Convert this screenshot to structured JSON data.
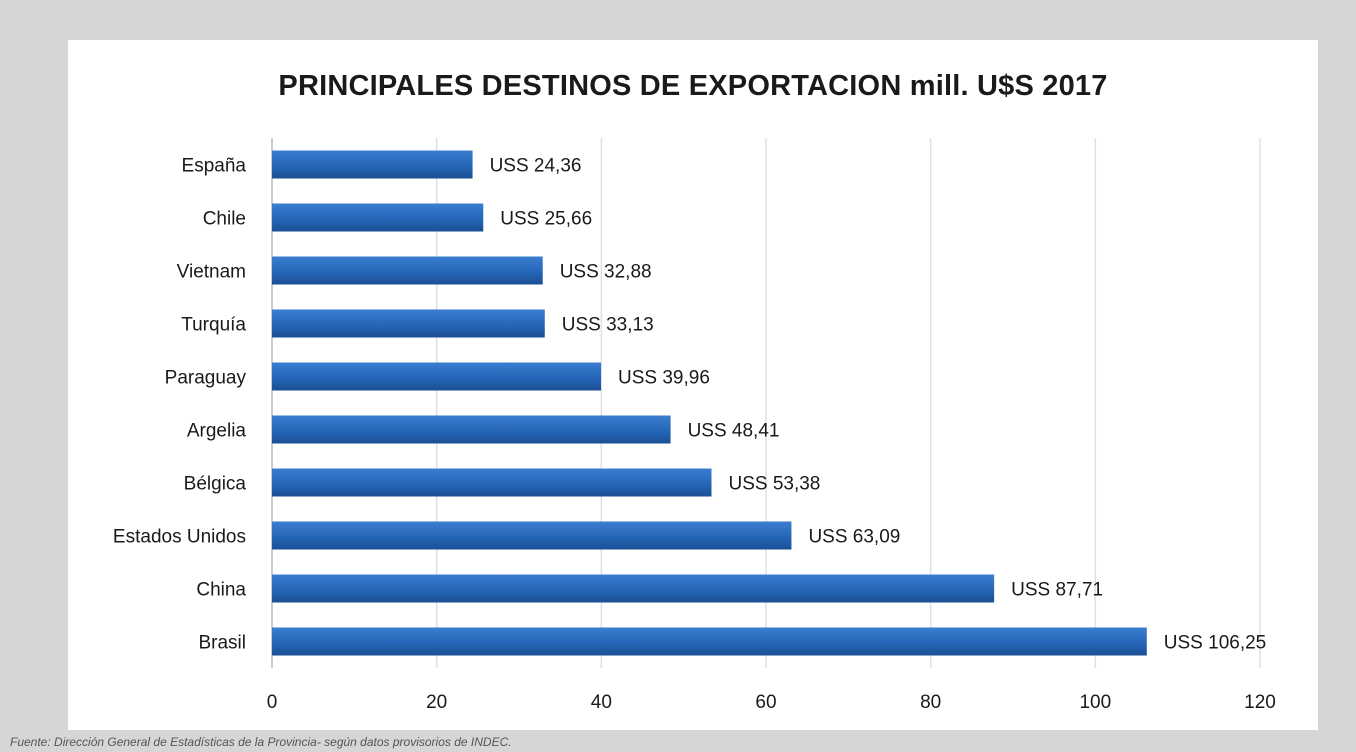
{
  "chart_data": {
    "type": "bar",
    "orientation": "horizontal",
    "title": "PRINCIPALES DESTINOS DE EXPORTACION mill. U$S 2017",
    "categories": [
      "España",
      "Chile",
      "Vietnam",
      "Turquía",
      "Paraguay",
      "Argelia",
      "Bélgica",
      "Estados Unidos",
      "China",
      "Brasil"
    ],
    "values": [
      24.36,
      25.66,
      32.88,
      33.13,
      39.96,
      48.41,
      53.38,
      63.09,
      87.71,
      106.25
    ],
    "data_labels": [
      "USS 24,36",
      "USS 25,66",
      "USS 32,88",
      "USS 33,13",
      "USS 39,96",
      "USS 48,41",
      "USS 53,38",
      "USS 63,09",
      "USS 87,71",
      "USS 106,25"
    ],
    "xlim": [
      0,
      120
    ],
    "x_ticks": [
      0,
      20,
      40,
      60,
      80,
      100,
      120
    ],
    "x_tick_labels": [
      "0",
      "20",
      "40",
      "60",
      "80",
      "100",
      "120"
    ],
    "grid": "vertical",
    "legend": "none",
    "bar_color": "#2566b8",
    "grid_color": "#d9e3f0"
  },
  "source_note": "Fuente: Dirección General de Estadísticas de la Provincia- según datos provisorios de INDEC."
}
